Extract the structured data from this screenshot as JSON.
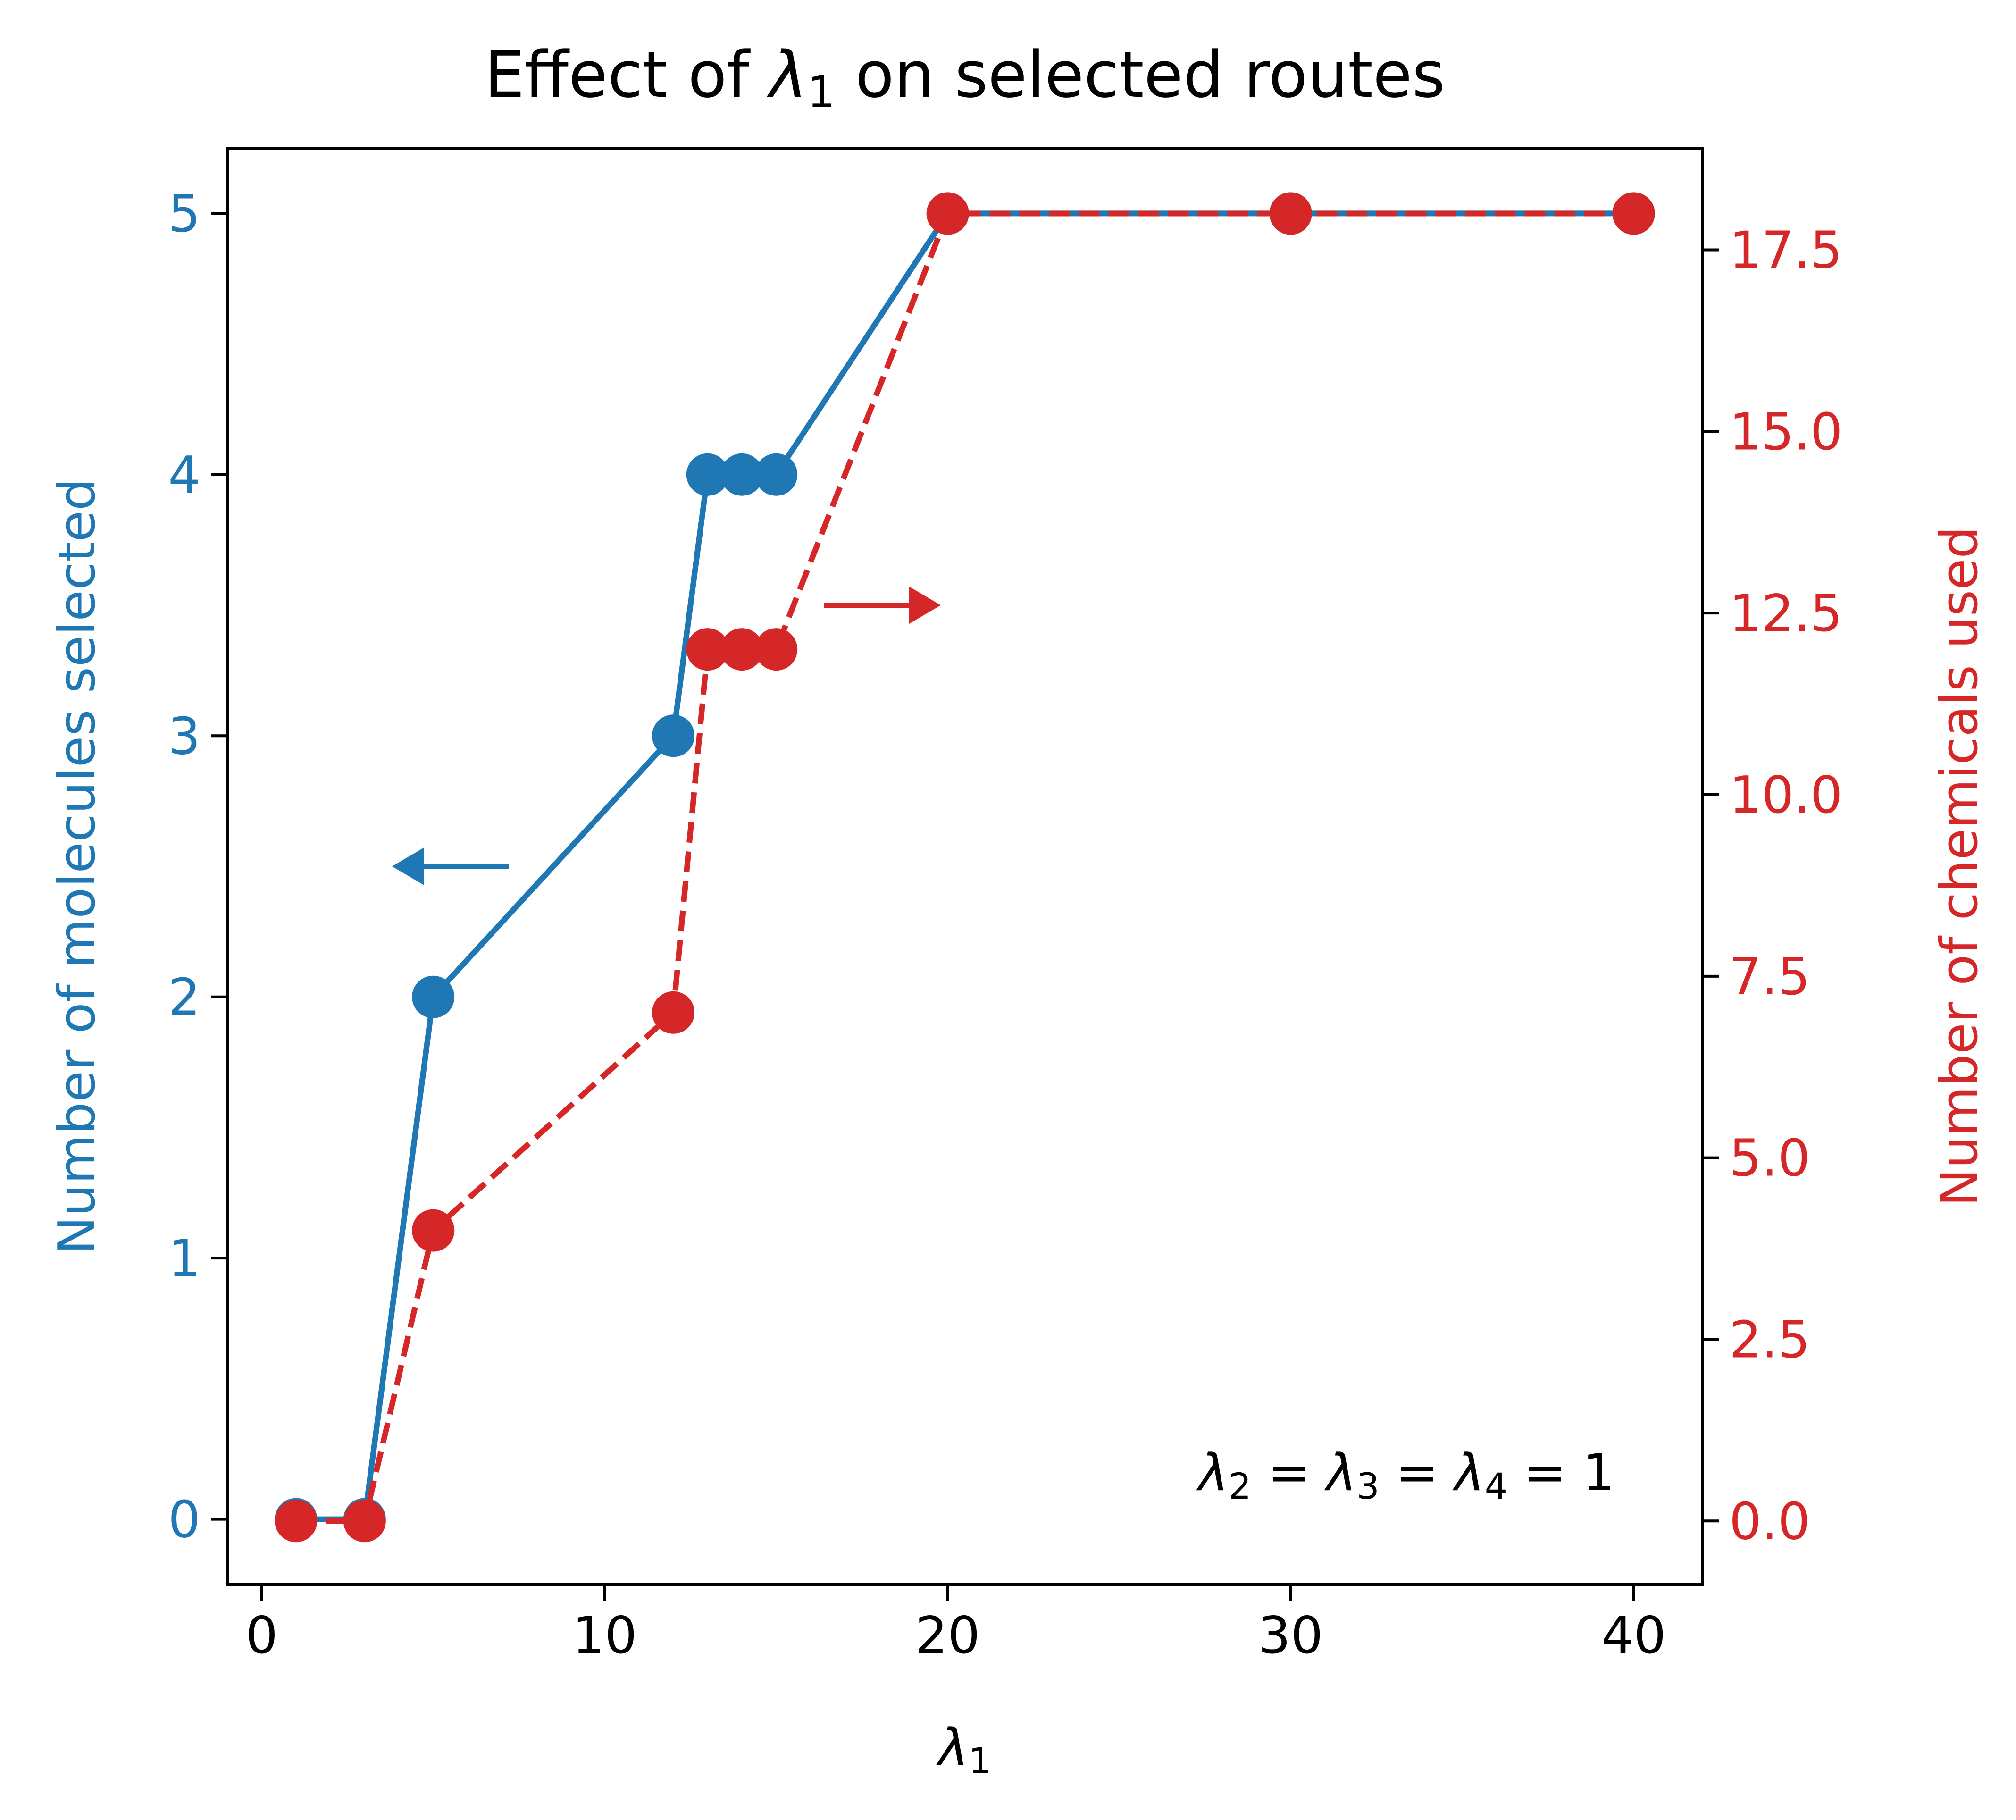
{
  "chart_data": {
    "type": "line",
    "title_prefix": "Effect of ",
    "title_symbol": "λ",
    "title_symbol_sub": "1",
    "title_suffix": " on selected routes",
    "xlabel_symbol": "λ",
    "xlabel_sub": "1",
    "ylabel_left": "Number of molecules selected",
    "ylabel_right": "Number of chemicals used",
    "xlim": [
      -1,
      42
    ],
    "ylim_left": [
      -0.25,
      5.25
    ],
    "ylim_right": [
      -0.875,
      18.9
    ],
    "x_ticks": [
      0,
      10,
      20,
      30,
      40
    ],
    "x_tick_labels": [
      "0",
      "10",
      "20",
      "30",
      "40"
    ],
    "y_left_ticks": [
      0,
      1,
      2,
      3,
      4,
      5
    ],
    "y_left_tick_labels": [
      "0",
      "1",
      "2",
      "3",
      "4",
      "5"
    ],
    "y_right_ticks": [
      0,
      2.5,
      5,
      7.5,
      10,
      12.5,
      15,
      17.5
    ],
    "y_right_tick_labels": [
      "0.0",
      "2.5",
      "5.0",
      "7.5",
      "10.0",
      "12.5",
      "15.0",
      "17.5"
    ],
    "grid": false,
    "x": [
      1,
      3,
      5,
      12,
      13,
      14,
      15,
      20,
      30,
      40
    ],
    "series": [
      {
        "axis": "left",
        "color": "#1f77b4",
        "linestyle": "solid",
        "marker": "circle",
        "values": [
          0,
          0,
          2,
          3,
          4,
          4,
          4,
          5,
          5,
          5
        ]
      },
      {
        "axis": "right",
        "color": "#d62728",
        "linestyle": "dashed",
        "marker": "circle",
        "values": [
          0,
          0,
          4,
          7,
          12,
          12,
          12,
          18,
          18,
          18
        ]
      }
    ],
    "arrows": [
      {
        "direction": "left",
        "color": "#1f77b4",
        "x_from": 7.2,
        "x_to": 3.8,
        "y_left": 2.5
      },
      {
        "direction": "right",
        "color": "#d62728",
        "x_from": 16.4,
        "x_to": 19.8,
        "y_left": 3.5
      }
    ],
    "annotation": {
      "parts": [
        {
          "sym": "λ",
          "sub": "2"
        },
        {
          "op": " = "
        },
        {
          "sym": "λ",
          "sub": "3"
        },
        {
          "op": " = "
        },
        {
          "sym": "λ",
          "sub": "4"
        },
        {
          "op": " = 1"
        }
      ],
      "placement": "bottom-right"
    }
  }
}
